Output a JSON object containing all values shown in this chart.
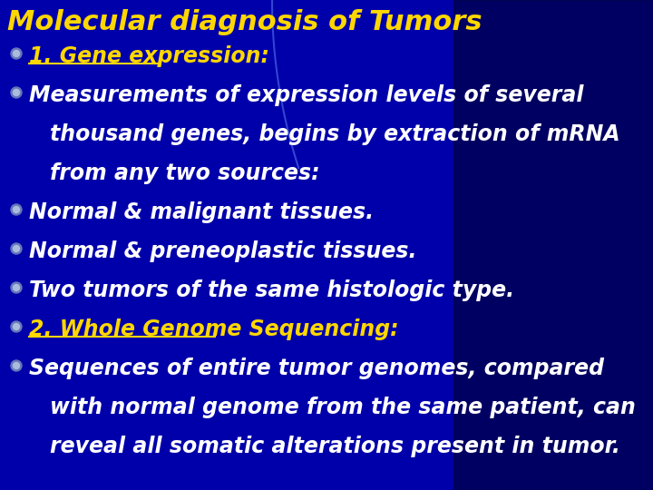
{
  "title": "Molecular diagnosis of Tumors",
  "title_color": "#FFD700",
  "title_fontsize": 22,
  "bg_color": "#0000AA",
  "text_color": "#FFFFFF",
  "bullet_color": "#8888CC",
  "lines": [
    {
      "text": "1. Gene expression:",
      "indent": 0,
      "color": "#FFD700",
      "underline": true,
      "fontsize": 17,
      "bold": true,
      "bullet": true
    },
    {
      "text": "Measurements of expression levels of several",
      "indent": 1,
      "color": "#FFFFFF",
      "underline": false,
      "fontsize": 17,
      "bold": true,
      "bullet": true
    },
    {
      "text": "thousand genes, begins by extraction of mRNA",
      "indent": 2,
      "color": "#FFFFFF",
      "underline": false,
      "fontsize": 17,
      "bold": true,
      "bullet": false
    },
    {
      "text": "from any two sources:",
      "indent": 2,
      "color": "#FFFFFF",
      "underline": false,
      "fontsize": 17,
      "bold": true,
      "bullet": false
    },
    {
      "text": "Normal & malignant tissues.",
      "indent": 0,
      "color": "#FFFFFF",
      "underline": false,
      "fontsize": 17,
      "bold": true,
      "bullet": true
    },
    {
      "text": "Normal & preneoplastic tissues.",
      "indent": 0,
      "color": "#FFFFFF",
      "underline": false,
      "fontsize": 17,
      "bold": true,
      "bullet": true
    },
    {
      "text": "Two tumors of the same histologic type.",
      "indent": 0,
      "color": "#FFFFFF",
      "underline": false,
      "fontsize": 17,
      "bold": true,
      "bullet": true
    },
    {
      "text": "2. Whole Genome Sequencing:",
      "indent": 0,
      "color": "#FFD700",
      "underline": true,
      "fontsize": 17,
      "bold": true,
      "bullet": true
    },
    {
      "text": "Sequences of entire tumor genomes, compared",
      "indent": 1,
      "color": "#FFFFFF",
      "underline": false,
      "fontsize": 17,
      "bold": true,
      "bullet": true
    },
    {
      "text": "with normal genome from the same patient, can",
      "indent": 2,
      "color": "#FFFFFF",
      "underline": false,
      "fontsize": 17,
      "bold": true,
      "bullet": false
    },
    {
      "text": "reveal all somatic alterations present in tumor.",
      "indent": 2,
      "color": "#FFFFFF",
      "underline": false,
      "fontsize": 17,
      "bold": true,
      "bullet": false
    }
  ],
  "swoosh_outer_color": "#1a1aff",
  "swoosh_inner_color": "#3355ff",
  "thin_arc_color": "#5577ff"
}
